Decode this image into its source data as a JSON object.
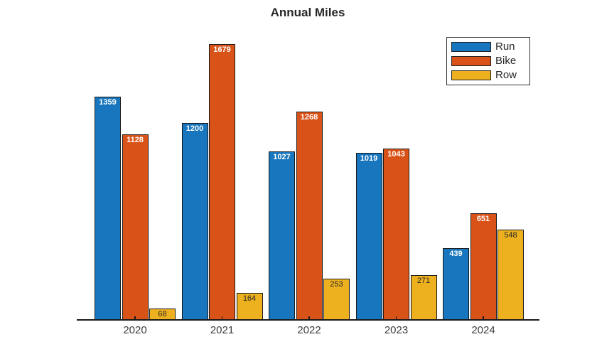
{
  "title": "Annual Miles",
  "chart_data": {
    "type": "bar",
    "title": "Annual Miles",
    "categories": [
      "2020",
      "2021",
      "2022",
      "2023",
      "2024"
    ],
    "series": [
      {
        "name": "Run",
        "color": "#1776bd",
        "label_color": "#ffffff",
        "label_weight": "bold",
        "values": [
          1359,
          1200,
          1027,
          1019,
          439
        ]
      },
      {
        "name": "Bike",
        "color": "#d95319",
        "label_color": "#ffffff",
        "label_weight": "bold",
        "values": [
          1128,
          1679,
          1268,
          1043,
          651
        ]
      },
      {
        "name": "Row",
        "color": "#edb120",
        "label_color": "#262626",
        "label_weight": "normal",
        "values": [
          68,
          164,
          253,
          271,
          548
        ]
      }
    ],
    "xlabel": "",
    "ylabel": "",
    "ylim": [
      0,
      1800
    ],
    "bar_labels": true,
    "grid": false,
    "legend_position": "top-right",
    "axis_color": "#1a1a1a"
  },
  "legend": {
    "items": [
      "Run",
      "Bike",
      "Row"
    ]
  }
}
